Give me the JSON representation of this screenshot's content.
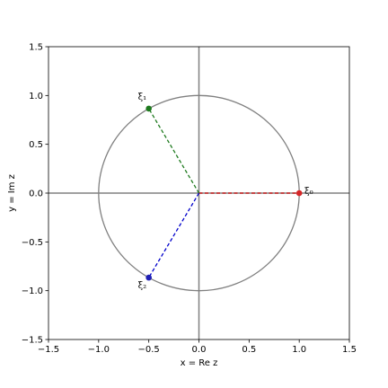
{
  "chart_data": {
    "type": "scatter",
    "title": "",
    "xlabel": "x = Re z",
    "ylabel": "y = Im z",
    "xlim": [
      -1.5,
      1.5
    ],
    "ylim": [
      -1.5,
      1.5
    ],
    "grid": false,
    "x_ticks": [
      -1.5,
      -1.0,
      -0.5,
      0.0,
      0.5,
      1.0,
      1.5
    ],
    "y_ticks": [
      -1.5,
      -1.0,
      -0.5,
      0.0,
      0.5,
      1.0,
      1.5
    ],
    "x_tick_labels": [
      "−1.5",
      "−1.0",
      "−0.5",
      "0.0",
      "0.5",
      "1.0",
      "1.5"
    ],
    "y_tick_labels": [
      "−1.5",
      "−1.0",
      "−0.5",
      "0.0",
      "0.5",
      "1.0",
      "1.5"
    ],
    "unit_circle": {
      "center": [
        0,
        0
      ],
      "radius": 1,
      "color": "#808080"
    },
    "axis_line_color": "#808080",
    "points": [
      {
        "label": "ξ₀",
        "x": 1.0,
        "y": 0.0,
        "color": "#d62728",
        "line_color": "#cc0000",
        "label_position": "right"
      },
      {
        "label": "ξ₁",
        "x": -0.5,
        "y": 0.866,
        "color": "#1e7a1e",
        "line_color": "#1e7a1e",
        "label_position": "above-left"
      },
      {
        "label": "ξ₂",
        "x": -0.5,
        "y": -0.866,
        "color": "#1f1fb4",
        "line_color": "#0000cc",
        "label_position": "below-left"
      }
    ]
  }
}
